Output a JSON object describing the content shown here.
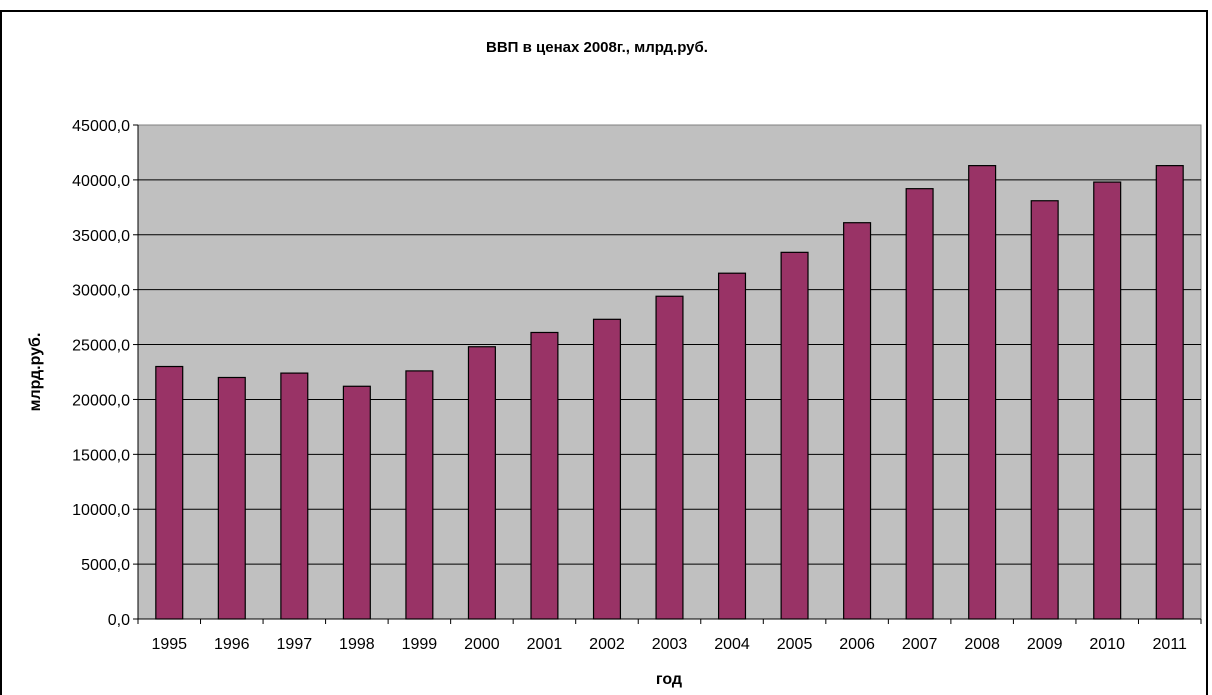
{
  "chart_data": {
    "type": "bar",
    "title": "ВВП в ценах 2008г., млрд.руб.",
    "xlabel": "год",
    "ylabel": "млрд.руб.",
    "categories": [
      "1995",
      "1996",
      "1997",
      "1998",
      "1999",
      "2000",
      "2001",
      "2002",
      "2003",
      "2004",
      "2005",
      "2006",
      "2007",
      "2008",
      "2009",
      "2010",
      "2011"
    ],
    "values": [
      23000,
      22000,
      22400,
      21200,
      22600,
      24800,
      26100,
      27300,
      29400,
      31500,
      33400,
      36100,
      39200,
      41300,
      38100,
      39800,
      41300
    ],
    "ylim": [
      0,
      45000
    ],
    "yticks": [
      0,
      5000,
      10000,
      15000,
      20000,
      25000,
      30000,
      35000,
      40000,
      45000
    ],
    "ytick_labels": [
      "0,0",
      "5000,0",
      "10000,0",
      "15000,0",
      "20000,0",
      "25000,0",
      "30000,0",
      "35000,0",
      "40000,0",
      "45000,0"
    ],
    "grid": true,
    "legend": "none",
    "colors": {
      "bar": "#993366",
      "plot_background": "#c0c0c0",
      "gridline": "#000000"
    }
  }
}
